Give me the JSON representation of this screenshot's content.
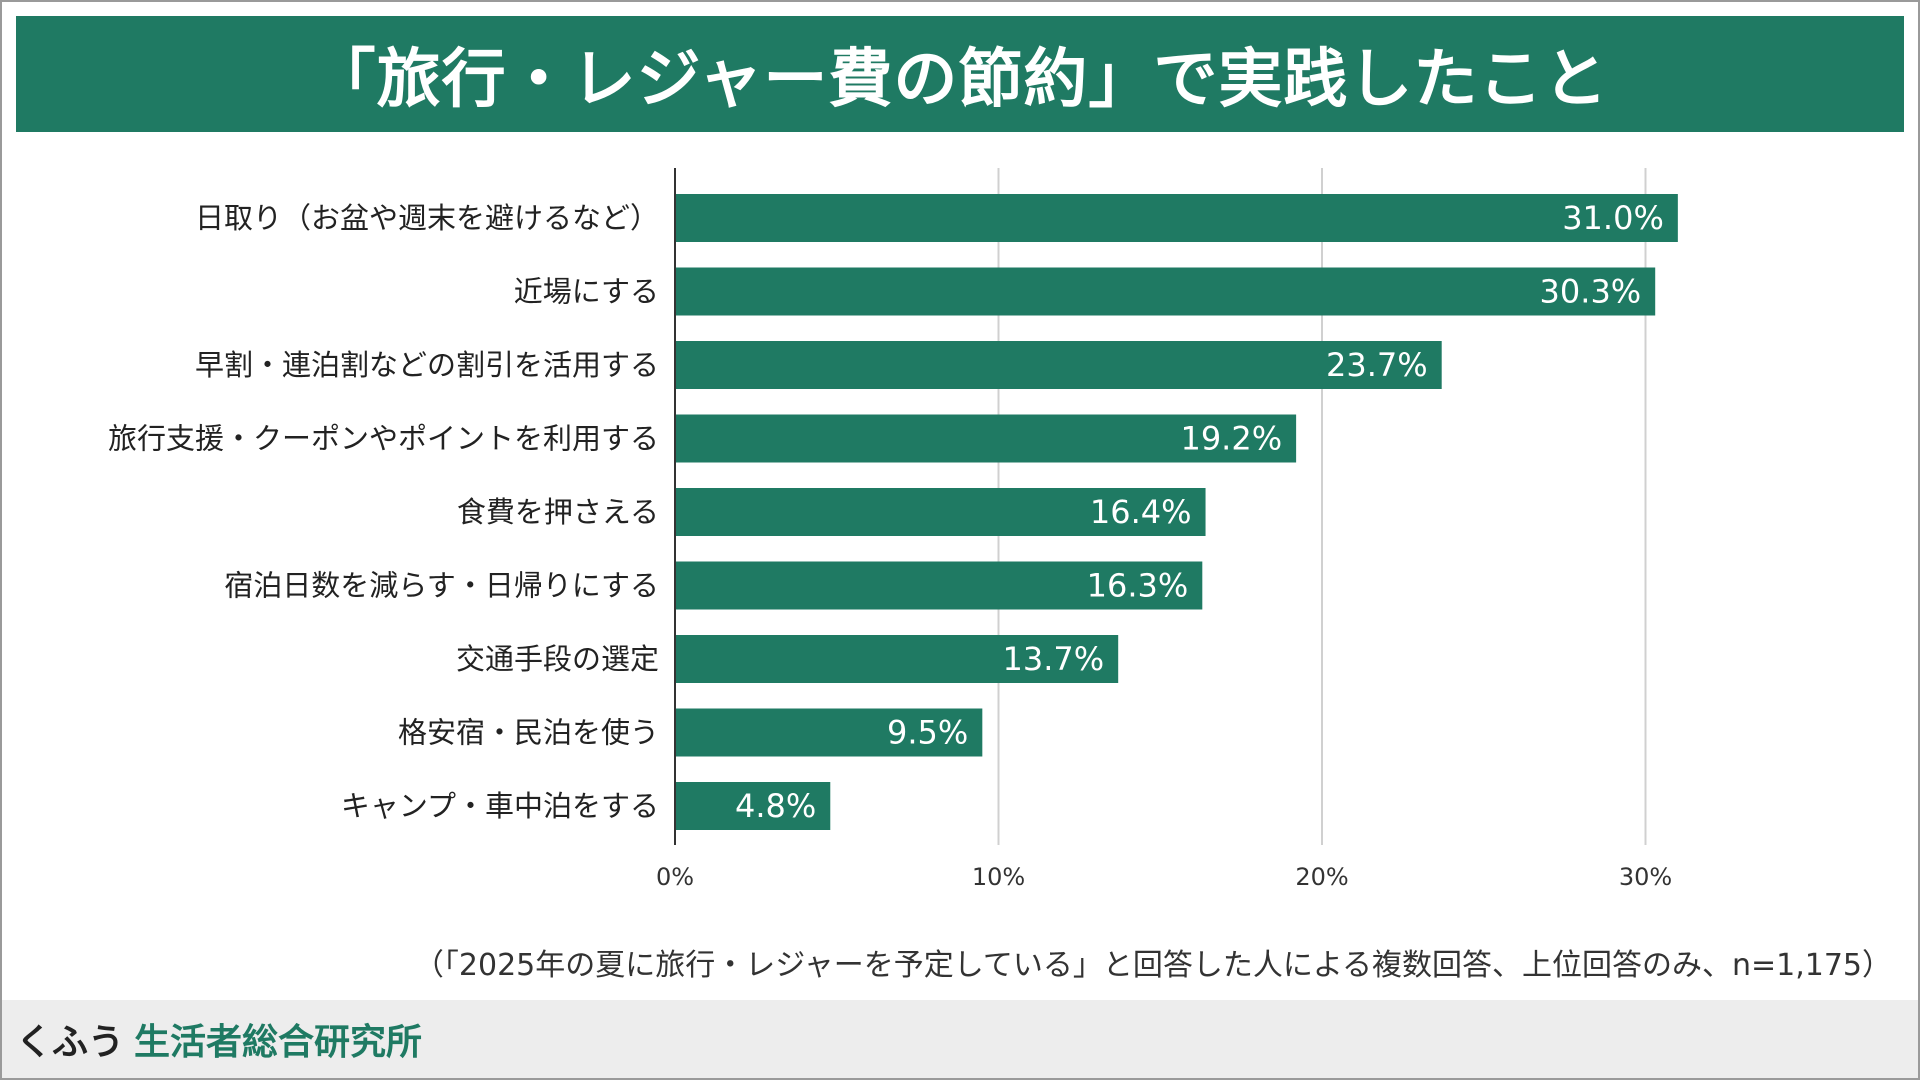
{
  "title": "「旅行・レジャー費の節約」で実践したこと",
  "note": "（「2025年の夏に旅行・レジャーを予定している」と回答した人による複数回答、上位回答のみ、n=1,175）",
  "footer": {
    "brand": "くふう",
    "sub": "生活者総合研究所"
  },
  "colors": {
    "accent": "#1f7a63",
    "grid": "#d0d0d0",
    "axis": "#333333"
  },
  "chart_data": {
    "type": "bar",
    "orientation": "horizontal",
    "categories": [
      "日取り（お盆や週末を避けるなど）",
      "近場にする",
      "早割・連泊割などの割引を活用する",
      "旅行支援・クーポンやポイントを利用する",
      "食費を押さえる",
      "宿泊日数を減らす・日帰りにする",
      "交通手段の選定",
      "格安宿・民泊を使う",
      "キャンプ・車中泊をする"
    ],
    "values": [
      31.0,
      30.3,
      23.7,
      19.2,
      16.4,
      16.3,
      13.7,
      9.5,
      4.8
    ],
    "value_labels": [
      "31.0%",
      "30.3%",
      "23.7%",
      "19.2%",
      "16.4%",
      "16.3%",
      "13.7%",
      "9.5%",
      "4.8%"
    ],
    "xlim": [
      0,
      30
    ],
    "xticks": [
      0,
      10,
      20,
      30
    ],
    "xtick_labels": [
      "0%",
      "10%",
      "20%",
      "30%"
    ],
    "grid": true,
    "legend": "none"
  }
}
